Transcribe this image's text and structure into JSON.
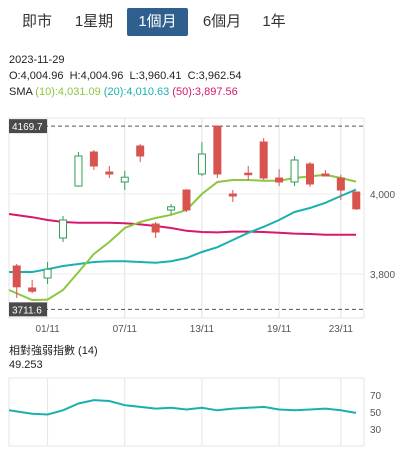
{
  "tabs": [
    {
      "label": "即市",
      "active": false
    },
    {
      "label": "1星期",
      "active": false
    },
    {
      "label": "1個月",
      "active": true
    },
    {
      "label": "6個月",
      "active": false
    },
    {
      "label": "1年",
      "active": false
    }
  ],
  "info": {
    "date": "2023-11-29",
    "ohlc": {
      "o_label": "O:",
      "o": "4,004.96",
      "h_label": "H:",
      "h": "4,004.96",
      "l_label": "L:",
      "l": "3,960.41",
      "c_label": "C:",
      "c": "3,962.54"
    },
    "sma": {
      "label": "SMA",
      "s10": "(10):4,031.09",
      "s20": "(20):4,010.63",
      "s50": "(50):3,897.56"
    }
  },
  "colors": {
    "up": "#2e9e57",
    "down": "#d9534f",
    "sma10": "#8dc63f",
    "sma20": "#1ab0b0",
    "sma50": "#d6186e",
    "rsi": "#1ab0b0",
    "tab_active": "#2e5f8e"
  },
  "rsi": {
    "title": "相對強弱指數 (14)",
    "value": "49.253",
    "ticks": [
      "70",
      "50",
      "30"
    ]
  },
  "chart_data": {
    "type": "candlestick",
    "x_tick_labels": [
      "01/11",
      "07/11",
      "13/11",
      "19/11",
      "23/11"
    ],
    "y_tick_labels": [
      "4,000",
      "3,800"
    ],
    "ylim": [
      3690,
      4190
    ],
    "high_marker": "4169.7",
    "low_marker": "3711.6",
    "candles": [
      {
        "o": 3820,
        "h": 3825,
        "l": 3740,
        "c": 3768
      },
      {
        "o": 3765,
        "h": 3785,
        "l": 3752,
        "c": 3757
      },
      {
        "o": 3790,
        "h": 3830,
        "l": 3775,
        "c": 3812
      },
      {
        "o": 3890,
        "h": 3945,
        "l": 3880,
        "c": 3935
      },
      {
        "o": 4020,
        "h": 4105,
        "l": 4018,
        "c": 4095
      },
      {
        "o": 4105,
        "h": 4110,
        "l": 4060,
        "c": 4070
      },
      {
        "o": 4055,
        "h": 4070,
        "l": 4040,
        "c": 4050
      },
      {
        "o": 4030,
        "h": 4058,
        "l": 4010,
        "c": 4042
      },
      {
        "o": 4120,
        "h": 4125,
        "l": 4080,
        "c": 4095
      },
      {
        "o": 3925,
        "h": 3930,
        "l": 3890,
        "c": 3905
      },
      {
        "o": 3960,
        "h": 3975,
        "l": 3950,
        "c": 3968
      },
      {
        "o": 4010,
        "h": 4012,
        "l": 3955,
        "c": 3960
      },
      {
        "o": 4050,
        "h": 4130,
        "l": 4045,
        "c": 4100
      },
      {
        "o": 4170,
        "h": 4170,
        "l": 4040,
        "c": 4050
      },
      {
        "o": 4000,
        "h": 4010,
        "l": 3980,
        "c": 3995
      },
      {
        "o": 4052,
        "h": 4070,
        "l": 4035,
        "c": 4050
      },
      {
        "o": 4130,
        "h": 4140,
        "l": 4035,
        "c": 4040
      },
      {
        "o": 4040,
        "h": 4062,
        "l": 4020,
        "c": 4030
      },
      {
        "o": 4030,
        "h": 4095,
        "l": 4020,
        "c": 4085
      },
      {
        "o": 4075,
        "h": 4080,
        "l": 4018,
        "c": 4025
      },
      {
        "o": 4050,
        "h": 4060,
        "l": 4045,
        "c": 4045
      },
      {
        "o": 4040,
        "h": 4048,
        "l": 3985,
        "c": 4010
      },
      {
        "o": 4005,
        "h": 4005,
        "l": 3960,
        "c": 3963
      }
    ],
    "sma10": [
      3760,
      3735,
      3736,
      3760,
      3805,
      3850,
      3880,
      3915,
      3930,
      3940,
      3948,
      3960,
      4000,
      4030,
      4035,
      4035,
      4033,
      4033,
      4040,
      4044,
      4048,
      4040,
      4031
    ],
    "sma20": [
      3805,
      3805,
      3812,
      3820,
      3825,
      3830,
      3832,
      3832,
      3830,
      3828,
      3832,
      3840,
      3855,
      3867,
      3885,
      3903,
      3918,
      3935,
      3955,
      3965,
      3978,
      3995,
      4011
    ],
    "sma50": [
      3950,
      3942,
      3935,
      3930,
      3928,
      3928,
      3928,
      3927,
      3924,
      3920,
      3915,
      3908,
      3905,
      3904,
      3906,
      3906,
      3905,
      3903,
      3901,
      3900,
      3898,
      3898,
      3898
    ],
    "rsi_values": [
      52,
      48,
      47,
      52,
      60,
      64,
      63,
      58,
      56,
      54,
      55,
      53,
      55,
      52,
      54,
      55,
      56,
      53,
      52,
      53,
      54,
      52,
      49
    ]
  }
}
